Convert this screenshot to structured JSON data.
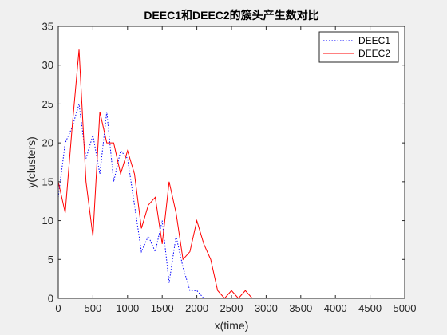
{
  "chart_data": {
    "type": "line",
    "title": "DEEC1和DEEC2的簇头产生数对比",
    "xlabel": "x(time)",
    "ylabel": "y(clusters)",
    "xlim": [
      0,
      5000
    ],
    "ylim": [
      0,
      35
    ],
    "xticks": [
      0,
      500,
      1000,
      1500,
      2000,
      2500,
      3000,
      3500,
      4000,
      4500,
      5000
    ],
    "yticks": [
      0,
      5,
      10,
      15,
      20,
      25,
      30,
      35
    ],
    "xtick_labels": [
      "0",
      "500",
      "1000",
      "1500",
      "2000",
      "2500",
      "3000",
      "3500",
      "4000",
      "4500",
      "5000"
    ],
    "ytick_labels": [
      "0",
      "5",
      "10",
      "15",
      "20",
      "25",
      "30",
      "35"
    ],
    "grid": false,
    "legend_position": "top-right",
    "series": [
      {
        "name": "DEEC1",
        "color": "#0000ff",
        "line_style": "dotted",
        "x": [
          0,
          100,
          200,
          300,
          400,
          500,
          600,
          700,
          800,
          900,
          1000,
          1100,
          1200,
          1300,
          1400,
          1500,
          1600,
          1700,
          1800,
          1900,
          2000,
          2100,
          2200,
          2300,
          2400,
          2500,
          2600,
          2700,
          2800,
          2900,
          3000,
          3500,
          4000,
          4500,
          5000
        ],
        "y": [
          13,
          20,
          22,
          25,
          18,
          21,
          16,
          24,
          15,
          19,
          18,
          12,
          6,
          8,
          6,
          10,
          2,
          8,
          4,
          1,
          1,
          0,
          0,
          0,
          0,
          0,
          0,
          0,
          0,
          0,
          0,
          0,
          0,
          0,
          0
        ]
      },
      {
        "name": "DEEC2",
        "color": "#ff0000",
        "line_style": "solid",
        "x": [
          0,
          100,
          200,
          300,
          400,
          500,
          600,
          700,
          800,
          900,
          1000,
          1100,
          1200,
          1300,
          1400,
          1500,
          1600,
          1700,
          1800,
          1900,
          2000,
          2100,
          2200,
          2300,
          2400,
          2500,
          2600,
          2700,
          2800,
          2900,
          3000,
          3500,
          4000,
          4500,
          5000
        ],
        "y": [
          15,
          11,
          22,
          32,
          15,
          8,
          24,
          20,
          20,
          16,
          19,
          16,
          9,
          12,
          13,
          7,
          15,
          11,
          5,
          6,
          10,
          7,
          5,
          1,
          0,
          1,
          0,
          1,
          0,
          0,
          0,
          0,
          0,
          0,
          0
        ]
      }
    ]
  }
}
